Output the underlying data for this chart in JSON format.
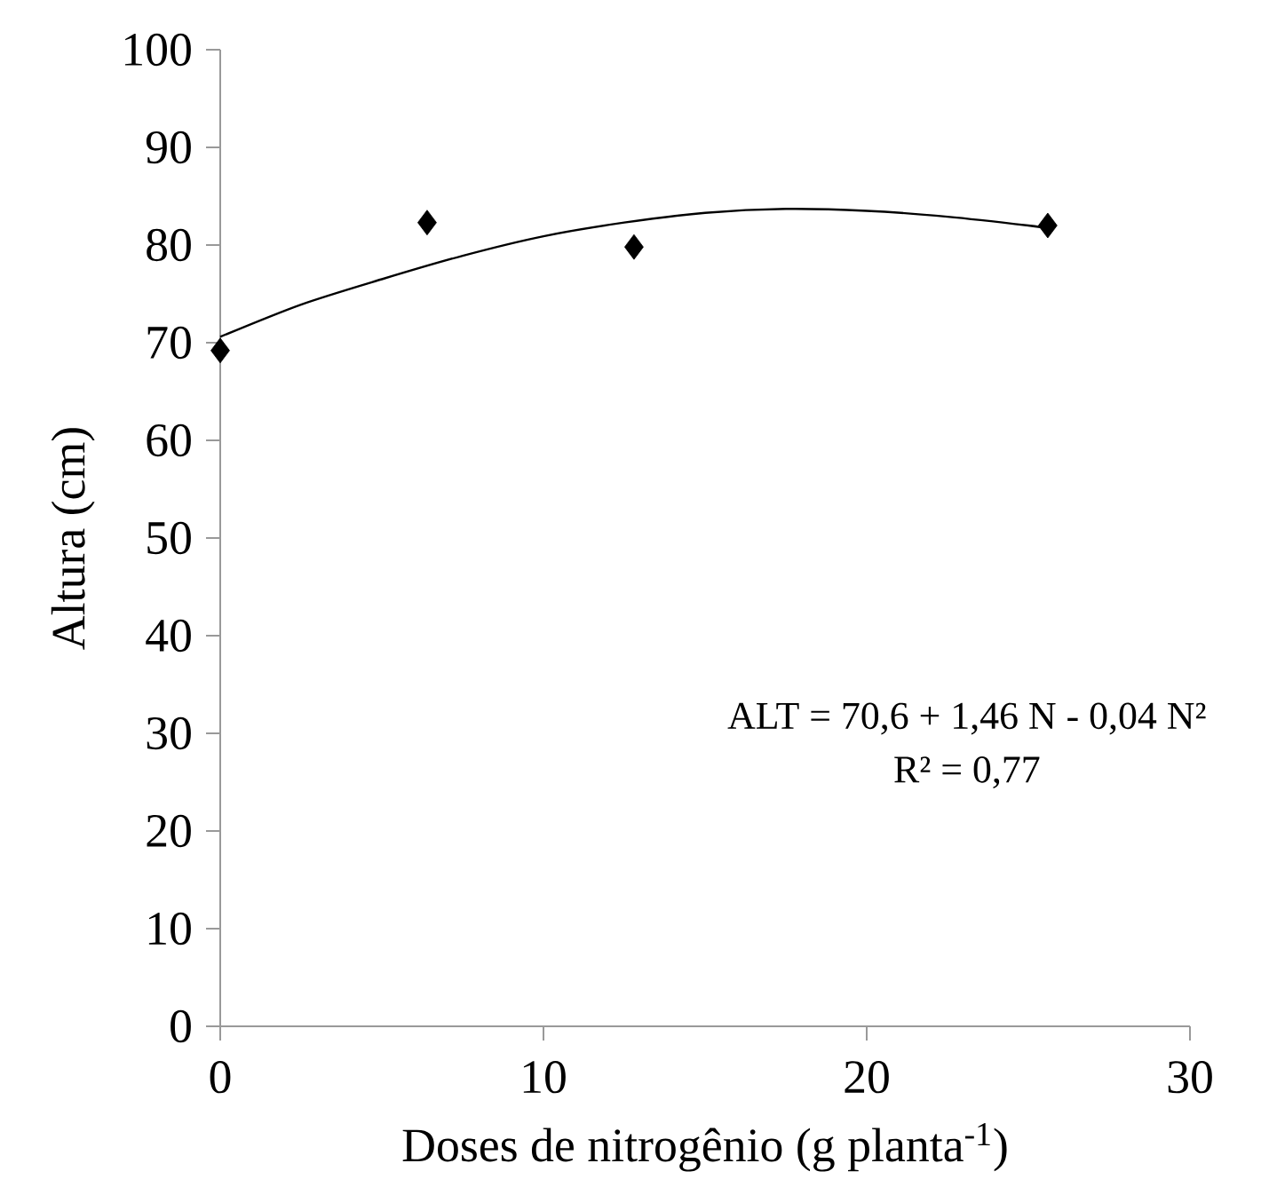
{
  "chart_data": {
    "type": "scatter",
    "xlabel": "Doses de nitrogênio (g planta$^{-1}$)",
    "ylabel": "Altura (cm)",
    "xlim": [
      0,
      30
    ],
    "ylim": [
      0,
      100
    ],
    "xticks": [
      0,
      10,
      20,
      30
    ],
    "yticks": [
      0,
      10,
      20,
      30,
      40,
      50,
      60,
      70,
      80,
      90,
      100
    ],
    "grid": false,
    "marker": "diamond",
    "series": [
      {
        "color": "#000000",
        "x": [
          0,
          6.4,
          12.8,
          25.6
        ],
        "values": [
          69.2,
          82.3,
          79.8,
          82.0
        ]
      },
      {
        "type": "line",
        "color": "#000000",
        "marker": "none",
        "line_style": "solid",
        "x": [
          0,
          2.5,
          5,
          7.5,
          10,
          12.5,
          15,
          17.5,
          20,
          22.5,
          25,
          25.6
        ],
        "values": [
          70.6,
          73.9,
          76.5,
          78.9,
          80.9,
          82.3,
          83.3,
          83.7,
          83.5,
          82.9,
          82.0,
          81.7
        ]
      }
    ],
    "annotations": [
      "ALT = 70,6 + 1,46 N - 0,04 N²",
      "R² = 0,77"
    ]
  }
}
